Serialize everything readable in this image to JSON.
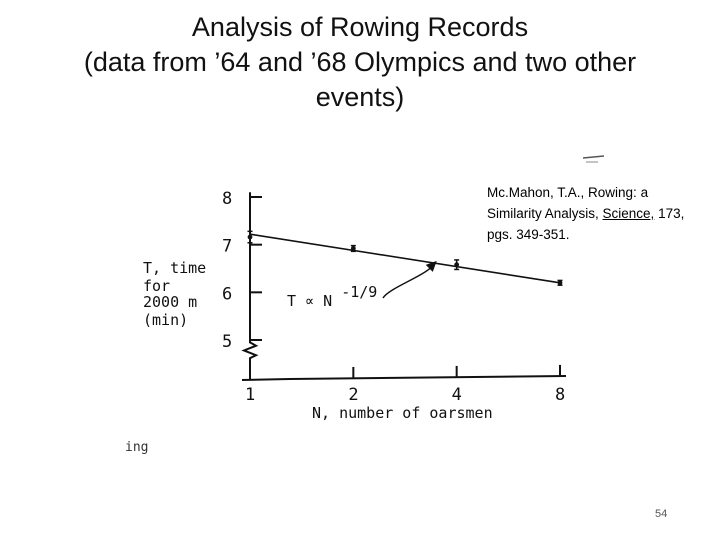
{
  "slide": {
    "title_line1": "Analysis of Rowing Records",
    "title_line2": "(data from ’64 and ’68 Olympics and two other",
    "title_line3": "events)",
    "citation_prefix": "Mc.Mahon, T.A., Rowing: a Similarity Analysis, ",
    "citation_journal": "Science,",
    "citation_suffix": " 173, pgs. 349-351.",
    "page_number": "54",
    "cropped_fragment": "ing"
  },
  "chart_data": {
    "type": "scatter",
    "x_scale": "log2",
    "ylabel_lines": [
      "T, time",
      "for",
      "2000 m",
      "(min)"
    ],
    "xlabel": "N, number of oarsmen",
    "x_ticks": [
      1,
      2,
      4,
      8
    ],
    "x_tick_labels": [
      "1",
      "2",
      "4",
      "8"
    ],
    "y_ticks": [
      5,
      6,
      7,
      8
    ],
    "y_tick_labels": [
      "5",
      "6",
      "7",
      "8"
    ],
    "ylim": [
      4.6,
      8.1
    ],
    "xlim": [
      1,
      8
    ],
    "axis_break": true,
    "series": [
      {
        "points": [
          {
            "x": 1,
            "y": 7.16,
            "spread": 0.12
          },
          {
            "x": 2,
            "y": 6.92,
            "spread": 0.06
          },
          {
            "x": 4,
            "y": 6.58,
            "spread": 0.1
          },
          {
            "x": 8,
            "y": 6.2,
            "spread": 0.05
          }
        ]
      }
    ],
    "fit_line": {
      "x": [
        1,
        8
      ],
      "y": [
        7.22,
        6.2
      ]
    },
    "annotation": {
      "text_prefix": "T ∝ N",
      "exponent": "-1/9",
      "points_to": {
        "x": 3.5,
        "y": 6.66
      }
    }
  }
}
